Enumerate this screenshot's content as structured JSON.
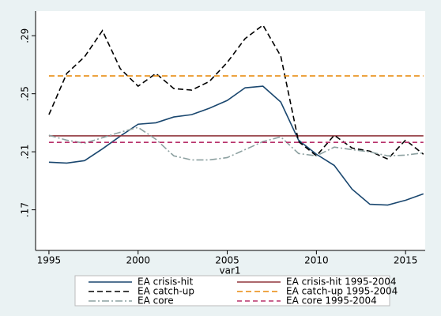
{
  "chart_data": {
    "type": "line",
    "x_label": "var1",
    "x": [
      1995,
      1996,
      1997,
      1998,
      1999,
      2000,
      2001,
      2002,
      2003,
      2004,
      2005,
      2006,
      2007,
      2008,
      2009,
      2010,
      2011,
      2012,
      2013,
      2014,
      2015,
      2016
    ],
    "series": [
      {
        "name": "EA crisis-hit",
        "color": "#1a476f",
        "dash": "none",
        "values": [
          0.2028,
          0.2022,
          0.2039,
          0.212,
          0.2208,
          0.229,
          0.23,
          0.234,
          0.2356,
          0.24,
          0.2454,
          0.2541,
          0.2552,
          0.2443,
          0.218,
          0.2083,
          0.2006,
          0.1842,
          0.1738,
          0.1733,
          0.1766,
          0.181
        ]
      },
      {
        "name": "EA crisis-hit 1995-2004",
        "color": "#90353b",
        "dash": "none",
        "values": [
          0.221,
          0.221,
          0.221,
          0.221,
          0.221,
          0.221,
          0.221,
          0.221,
          0.221,
          0.221,
          0.221,
          0.221,
          0.221,
          0.221,
          0.221,
          0.221,
          0.221,
          0.221,
          0.221,
          0.221,
          0.221,
          0.221
        ]
      },
      {
        "name": "EA catch-up",
        "color": "#000000",
        "dash": "7,4",
        "values": [
          0.2356,
          0.264,
          0.2755,
          0.2935,
          0.2673,
          0.2552,
          0.264,
          0.2536,
          0.2525,
          0.2585,
          0.2716,
          0.288,
          0.2973,
          0.276,
          0.217,
          0.2072,
          0.2214,
          0.2126,
          0.2104,
          0.205,
          0.2181,
          0.2083
        ]
      },
      {
        "name": "EA catch-up 1995-2004",
        "color": "#e8890c",
        "dash": "7,4",
        "values": [
          0.2623,
          0.2623,
          0.2623,
          0.2623,
          0.2623,
          0.2623,
          0.2623,
          0.2623,
          0.2623,
          0.2623,
          0.2623,
          0.2623,
          0.2623,
          0.2623,
          0.2623,
          0.2623,
          0.2623,
          0.2623,
          0.2623,
          0.2623,
          0.2623,
          0.2623
        ]
      },
      {
        "name": "EA core",
        "color": "#8ca0a0",
        "dash": "9,3,2,3",
        "values": [
          0.2214,
          0.218,
          0.2159,
          0.2197,
          0.2235,
          0.2268,
          0.2186,
          0.2072,
          0.2044,
          0.2044,
          0.206,
          0.2115,
          0.217,
          0.2203,
          0.2088,
          0.2072,
          0.2132,
          0.2115,
          0.2099,
          0.2072,
          0.2077,
          0.2093
        ]
      },
      {
        "name": "EA core 1995-2004",
        "color": "#b8306a",
        "dash": "6,4",
        "values": [
          0.2165,
          0.2165,
          0.2165,
          0.2165,
          0.2165,
          0.2165,
          0.2165,
          0.2165,
          0.2165,
          0.2165,
          0.2165,
          0.2165,
          0.2165,
          0.2165,
          0.2165,
          0.2165,
          0.2165,
          0.2165,
          0.2165,
          0.2165,
          0.2165,
          0.2165
        ]
      }
    ],
    "xlim": [
      1994.25,
      2016.1
    ],
    "ylim": [
      0.142,
      0.307
    ],
    "xticks": [
      1995,
      2000,
      2005,
      2010,
      2015
    ],
    "yticks": [
      {
        "value": 0.17,
        "label": ".17"
      },
      {
        "value": 0.21,
        "label": ".21"
      },
      {
        "value": 0.25,
        "label": ".25"
      },
      {
        "value": 0.29,
        "label": ".29"
      }
    ],
    "grid": false,
    "legend": "bottom"
  }
}
